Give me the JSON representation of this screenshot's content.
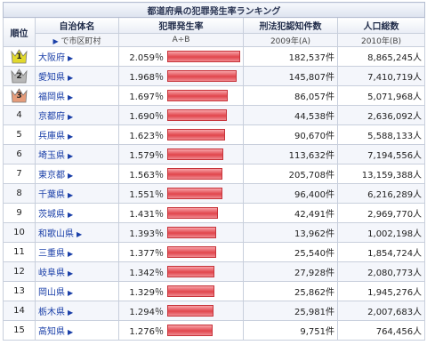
{
  "title": "都道府県の犯罪発生率ランキング",
  "headers": {
    "rank": "順位",
    "entity": "自治体名",
    "entity_sub_arrow": "▶",
    "entity_sub": "で市区町村",
    "rate": "犯罪発生率",
    "rate_sub": "A÷B",
    "crimes": "刑法犯認知件数",
    "crimes_sub": "2009年(A)",
    "population": "人口総数",
    "population_sub": "2010年(B)"
  },
  "colors": {
    "gold": "#e2d92c",
    "silver": "#b8b8b8",
    "bronze": "#e69c7a",
    "bar": "#e1454c",
    "link": "#1a3fa8"
  },
  "rows": [
    {
      "rank": "1",
      "pref": "大阪府",
      "rate": "2.059％",
      "rate_value": 2.059,
      "crimes": "182,537件",
      "population": "8,865,245人",
      "medal": "gold"
    },
    {
      "rank": "2",
      "pref": "愛知県",
      "rate": "1.968％",
      "rate_value": 1.968,
      "crimes": "145,807件",
      "population": "7,410,719人",
      "medal": "silver"
    },
    {
      "rank": "3",
      "pref": "福岡県",
      "rate": "1.697％",
      "rate_value": 1.697,
      "crimes": "86,057件",
      "population": "5,071,968人",
      "medal": "bronze"
    },
    {
      "rank": "4",
      "pref": "京都府",
      "rate": "1.690％",
      "rate_value": 1.69,
      "crimes": "44,538件",
      "population": "2,636,092人",
      "medal": ""
    },
    {
      "rank": "5",
      "pref": "兵庫県",
      "rate": "1.623％",
      "rate_value": 1.623,
      "crimes": "90,670件",
      "population": "5,588,133人",
      "medal": ""
    },
    {
      "rank": "6",
      "pref": "埼玉県",
      "rate": "1.579％",
      "rate_value": 1.579,
      "crimes": "113,632件",
      "population": "7,194,556人",
      "medal": ""
    },
    {
      "rank": "7",
      "pref": "東京都",
      "rate": "1.563％",
      "rate_value": 1.563,
      "crimes": "205,708件",
      "population": "13,159,388人",
      "medal": ""
    },
    {
      "rank": "8",
      "pref": "千葉県",
      "rate": "1.551％",
      "rate_value": 1.551,
      "crimes": "96,400件",
      "population": "6,216,289人",
      "medal": ""
    },
    {
      "rank": "9",
      "pref": "茨城県",
      "rate": "1.431％",
      "rate_value": 1.431,
      "crimes": "42,491件",
      "population": "2,969,770人",
      "medal": ""
    },
    {
      "rank": "10",
      "pref": "和歌山県",
      "rate": "1.393％",
      "rate_value": 1.393,
      "crimes": "13,962件",
      "population": "1,002,198人",
      "medal": ""
    },
    {
      "rank": "11",
      "pref": "三重県",
      "rate": "1.377％",
      "rate_value": 1.377,
      "crimes": "25,540件",
      "population": "1,854,724人",
      "medal": ""
    },
    {
      "rank": "12",
      "pref": "岐阜県",
      "rate": "1.342％",
      "rate_value": 1.342,
      "crimes": "27,928件",
      "population": "2,080,773人",
      "medal": ""
    },
    {
      "rank": "13",
      "pref": "岡山県",
      "rate": "1.329％",
      "rate_value": 1.329,
      "crimes": "25,862件",
      "population": "1,945,276人",
      "medal": ""
    },
    {
      "rank": "14",
      "pref": "栃木県",
      "rate": "1.294％",
      "rate_value": 1.294,
      "crimes": "25,981件",
      "population": "2,007,683人",
      "medal": ""
    },
    {
      "rank": "15",
      "pref": "高知県",
      "rate": "1.276％",
      "rate_value": 1.276,
      "crimes": "9,751件",
      "population": "764,456人",
      "medal": ""
    }
  ]
}
